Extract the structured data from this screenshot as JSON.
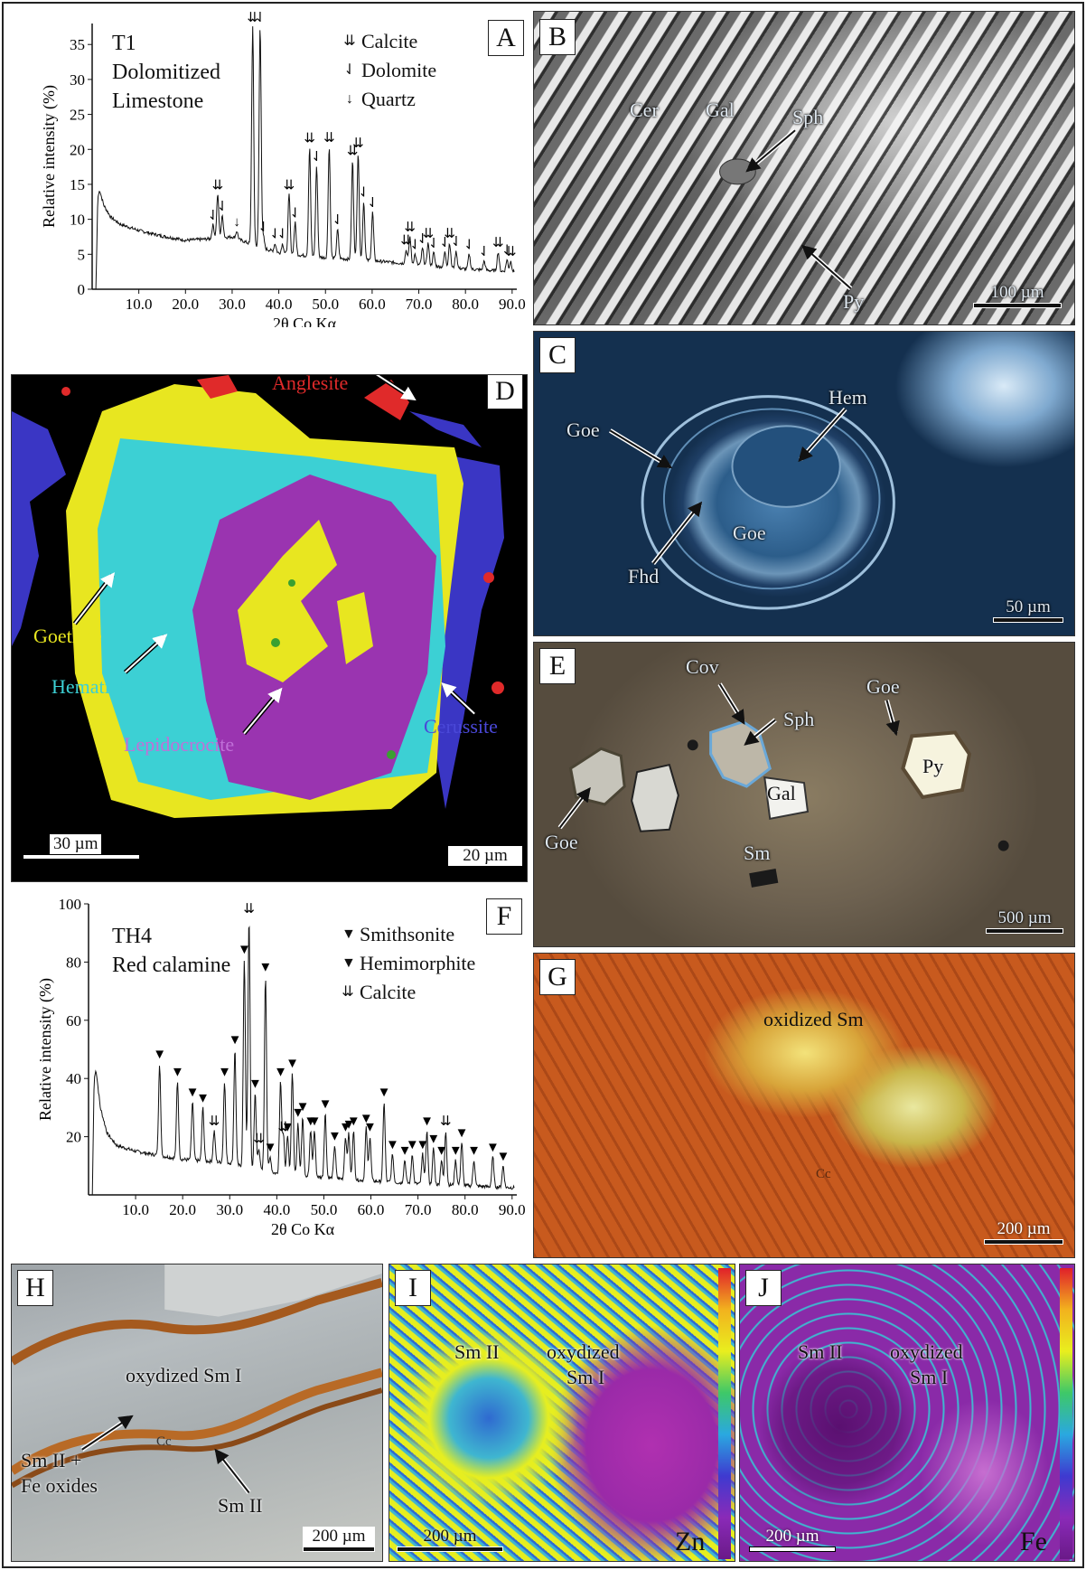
{
  "panels": {
    "A": {
      "label": "A",
      "title_lines": [
        "T1",
        "Dolomitized",
        "Limestone"
      ],
      "ylabel": "Relative intensity (%)",
      "xlabel": "2θ Co Kα",
      "legend": [
        {
          "symbol": "⇊",
          "name": "Calcite"
        },
        {
          "symbol": "⇃",
          "name": "Dolomite"
        },
        {
          "symbol": "↓",
          "name": "Quartz"
        }
      ]
    },
    "B": {
      "label": "B",
      "minerals": [
        "Cer",
        "Gal",
        "Sph",
        "Py"
      ],
      "scale": "100 µm"
    },
    "C": {
      "label": "C",
      "minerals": [
        "Goe",
        "Hem",
        "Goe",
        "Fhd"
      ],
      "scale": "50 µm"
    },
    "D": {
      "label": "D",
      "phases": [
        "Anglesite",
        "Goethite",
        "Hematite",
        "Lepidocrocite",
        "Cerussite"
      ],
      "scale_left": "30 µm",
      "scale_right": "20 µm"
    },
    "E": {
      "label": "E",
      "minerals": [
        "Cov",
        "Sph",
        "Goe",
        "Py",
        "Gal",
        "Goe",
        "Sm"
      ],
      "scale": "500 µm"
    },
    "F": {
      "label": "F",
      "title_lines": [
        "TH4",
        "Red calamine"
      ],
      "ylabel": "Relative intensity (%)",
      "xlabel": "2θ Co Kα",
      "legend": [
        {
          "symbol": "▼",
          "name": "Smithsonite"
        },
        {
          "symbol": "▼",
          "name": "Hemimorphite"
        },
        {
          "symbol": "⇊",
          "name": "Calcite"
        }
      ]
    },
    "G": {
      "label": "G",
      "text": "oxidized Sm",
      "cc": "Cc",
      "scale": "200 µm"
    },
    "H": {
      "label": "H",
      "text": "oxydized Sm I",
      "left": "Sm II +",
      "left2": "Fe oxides",
      "right": "Sm II",
      "cc": "Cc",
      "scale": "200 µm"
    },
    "I": {
      "label": "I",
      "a": "Sm II",
      "b1": "oxydized",
      "b2": "Sm I",
      "element": "Zn",
      "scale": "200 µm"
    },
    "J": {
      "label": "J",
      "a": "Sm II",
      "b1": "oxydized",
      "b2": "Sm I",
      "element": "Fe",
      "scale": "200 µm"
    }
  },
  "chart_data": [
    {
      "type": "line",
      "panel": "A",
      "title": "T1 Dolomitized Limestone",
      "xlabel": "2θ Co Kα",
      "ylabel": "Relative intensity (%)",
      "xlim": [
        0,
        91
      ],
      "ylim": [
        0,
        38
      ],
      "xticks": [
        10.0,
        20.0,
        30.0,
        40.0,
        50.0,
        60.0,
        70.0,
        80.0,
        90.0
      ],
      "xtick_labels": [
        "10.0",
        "20.0",
        "30.0",
        "40.0",
        "50.0",
        "60.0",
        "70.0",
        "80.0",
        "90.0"
      ],
      "yticks": [
        0,
        5,
        10,
        15,
        20,
        25,
        30,
        35
      ],
      "background": [
        [
          0.8,
          0
        ],
        [
          1.2,
          13
        ],
        [
          1.6,
          14.2
        ],
        [
          2.5,
          12
        ],
        [
          4,
          10.3
        ],
        [
          6,
          9.3
        ],
        [
          10,
          8.4
        ],
        [
          15,
          7.6
        ],
        [
          20,
          7
        ],
        [
          25,
          7.2
        ],
        [
          30,
          7.5
        ],
        [
          35,
          6.2
        ],
        [
          40,
          5.2
        ],
        [
          50,
          4.5
        ],
        [
          60,
          4.1
        ],
        [
          70,
          3.5
        ],
        [
          80,
          2.9
        ],
        [
          90,
          2.5
        ]
      ],
      "peaks": [
        {
          "x": 25.9,
          "y": 9.2,
          "mineral": "Dolomite"
        },
        {
          "x": 26.9,
          "y": 13.5,
          "mineral": "Calcite"
        },
        {
          "x": 27.9,
          "y": 10.5,
          "mineral": "Dolomite"
        },
        {
          "x": 31.0,
          "y": 8.3,
          "mineral": "Quartz"
        },
        {
          "x": 34.4,
          "y": 37.5,
          "mineral": "Calcite"
        },
        {
          "x": 36.0,
          "y": 37.5,
          "mineral": "Dolomite"
        },
        {
          "x": 36.7,
          "y": 7.5,
          "mineral": "Dolomite"
        },
        {
          "x": 39.2,
          "y": 6.5,
          "mineral": "Dolomite"
        },
        {
          "x": 40.8,
          "y": 6.5,
          "mineral": "Dolomite"
        },
        {
          "x": 42.2,
          "y": 13.5,
          "mineral": "Calcite"
        },
        {
          "x": 43.5,
          "y": 9.5,
          "mineral": "Dolomite"
        },
        {
          "x": 46.6,
          "y": 20.2,
          "mineral": "Calcite"
        },
        {
          "x": 48.1,
          "y": 17.6,
          "mineral": "Dolomite"
        },
        {
          "x": 50.8,
          "y": 20.3,
          "mineral": "Calcite"
        },
        {
          "x": 52.6,
          "y": 8.5,
          "mineral": "Dolomite"
        },
        {
          "x": 55.8,
          "y": 18.4,
          "mineral": "Calcite"
        },
        {
          "x": 57.0,
          "y": 19.5,
          "mineral": "Calcite"
        },
        {
          "x": 58.2,
          "y": 12.5,
          "mineral": "Dolomite"
        },
        {
          "x": 60.1,
          "y": 11.0,
          "mineral": "Dolomite"
        },
        {
          "x": 67.3,
          "y": 5.6,
          "mineral": "Calcite"
        },
        {
          "x": 68.1,
          "y": 7.5,
          "mineral": "Calcite"
        },
        {
          "x": 69.2,
          "y": 5.0,
          "mineral": "Dolomite"
        },
        {
          "x": 70.8,
          "y": 5.8,
          "mineral": "Dolomite"
        },
        {
          "x": 72.0,
          "y": 6.6,
          "mineral": "Calcite"
        },
        {
          "x": 73.2,
          "y": 5.2,
          "mineral": "Dolomite"
        },
        {
          "x": 75.6,
          "y": 5.3,
          "mineral": "Dolomite"
        },
        {
          "x": 76.6,
          "y": 6.6,
          "mineral": "Calcite"
        },
        {
          "x": 78.0,
          "y": 5.4,
          "mineral": "Dolomite"
        },
        {
          "x": 80.8,
          "y": 5.0,
          "mineral": "Dolomite"
        },
        {
          "x": 84.0,
          "y": 4.0,
          "mineral": "Dolomite"
        },
        {
          "x": 87.0,
          "y": 5.3,
          "mineral": "Calcite"
        },
        {
          "x": 88.9,
          "y": 4.2,
          "mineral": "Dolomite"
        },
        {
          "x": 89.7,
          "y": 4.0,
          "mineral": "Calcite"
        }
      ]
    },
    {
      "type": "line",
      "panel": "F",
      "title": "TH4 Red calamine",
      "xlabel": "2θ Co Kα",
      "ylabel": "Relative intensity (%)",
      "xlim": [
        0,
        91
      ],
      "ylim": [
        0,
        100
      ],
      "xticks": [
        10.0,
        20.0,
        30.0,
        40.0,
        50.0,
        60.0,
        70.0,
        80.0,
        90.0
      ],
      "xtick_labels": [
        "10.0",
        "20.0",
        "30.0",
        "40.0",
        "50.0",
        "60.0",
        "70.0",
        "80.0",
        "90.0"
      ],
      "yticks": [
        20,
        40,
        60,
        80,
        100
      ],
      "background": [
        [
          0.8,
          0
        ],
        [
          1.2,
          40
        ],
        [
          1.6,
          43
        ],
        [
          2.5,
          30
        ],
        [
          4,
          21
        ],
        [
          6,
          17
        ],
        [
          10,
          15
        ],
        [
          15,
          13.5
        ],
        [
          20,
          12.2
        ],
        [
          25,
          11.6
        ],
        [
          30,
          11
        ],
        [
          35,
          8.8
        ],
        [
          40,
          7.4
        ],
        [
          50,
          6
        ],
        [
          60,
          4.8
        ],
        [
          70,
          3.8
        ],
        [
          80,
          3.2
        ],
        [
          90,
          2.5
        ]
      ],
      "peaks": [
        {
          "x": 15.1,
          "y": 45,
          "mineral": "Hemimorphite"
        },
        {
          "x": 18.9,
          "y": 39,
          "mineral": "Hemimorphite"
        },
        {
          "x": 22.1,
          "y": 32,
          "mineral": "Hemimorphite"
        },
        {
          "x": 24.3,
          "y": 30,
          "mineral": "Hemimorphite"
        },
        {
          "x": 26.7,
          "y": 22,
          "mineral": "Calcite"
        },
        {
          "x": 28.9,
          "y": 39,
          "mineral": "Hemimorphite"
        },
        {
          "x": 31.1,
          "y": 50,
          "mineral": "Hemimorphite"
        },
        {
          "x": 33.1,
          "y": 81,
          "mineral": "Smithsonite"
        },
        {
          "x": 34.1,
          "y": 95,
          "mineral": "Calcite"
        },
        {
          "x": 35.4,
          "y": 35,
          "mineral": "Hemimorphite"
        },
        {
          "x": 36.2,
          "y": 16,
          "mineral": "Calcite"
        },
        {
          "x": 37.6,
          "y": 75,
          "mineral": "Smithsonite"
        },
        {
          "x": 38.6,
          "y": 13,
          "mineral": "Hemimorphite"
        },
        {
          "x": 40.8,
          "y": 39,
          "mineral": "Hemimorphite"
        },
        {
          "x": 41.4,
          "y": 20,
          "mineral": "Calcite"
        },
        {
          "x": 42.3,
          "y": 20,
          "mineral": "Hemimorphite"
        },
        {
          "x": 43.3,
          "y": 42,
          "mineral": "Hemimorphite"
        },
        {
          "x": 44.5,
          "y": 25,
          "mineral": "Hemimorphite"
        },
        {
          "x": 45.5,
          "y": 27,
          "mineral": "Hemimorphite"
        },
        {
          "x": 47.2,
          "y": 22,
          "mineral": "Hemimorphite"
        },
        {
          "x": 48.0,
          "y": 22,
          "mineral": "Hemimorphite"
        },
        {
          "x": 50.3,
          "y": 28,
          "mineral": "Hemimorphite"
        },
        {
          "x": 52.3,
          "y": 17,
          "mineral": "Hemimorphite"
        },
        {
          "x": 54.6,
          "y": 20,
          "mineral": "Hemimorphite"
        },
        {
          "x": 55.3,
          "y": 21,
          "mineral": "Hemimorphite"
        },
        {
          "x": 56.3,
          "y": 22,
          "mineral": "Hemimorphite"
        },
        {
          "x": 59.0,
          "y": 23,
          "mineral": "Hemimorphite"
        },
        {
          "x": 59.8,
          "y": 20,
          "mineral": "Hemimorphite"
        },
        {
          "x": 62.8,
          "y": 32,
          "mineral": "Smithsonite"
        },
        {
          "x": 64.6,
          "y": 14,
          "mineral": "Hemimorphite"
        },
        {
          "x": 67.2,
          "y": 12,
          "mineral": "Hemimorphite"
        },
        {
          "x": 68.8,
          "y": 14,
          "mineral": "Hemimorphite"
        },
        {
          "x": 71.0,
          "y": 14,
          "mineral": "Hemimorphite"
        },
        {
          "x": 71.9,
          "y": 22,
          "mineral": "Hemimorphite"
        },
        {
          "x": 73.3,
          "y": 16,
          "mineral": "Hemimorphite"
        },
        {
          "x": 75.0,
          "y": 12,
          "mineral": "Hemimorphite"
        },
        {
          "x": 75.9,
          "y": 22,
          "mineral": "Calcite"
        },
        {
          "x": 78.0,
          "y": 12,
          "mineral": "Hemimorphite"
        },
        {
          "x": 79.3,
          "y": 18,
          "mineral": "Hemimorphite"
        },
        {
          "x": 81.9,
          "y": 12,
          "mineral": "Hemimorphite"
        },
        {
          "x": 85.9,
          "y": 13,
          "mineral": "Hemimorphite"
        },
        {
          "x": 88.1,
          "y": 10,
          "mineral": "Hemimorphite"
        }
      ]
    }
  ]
}
